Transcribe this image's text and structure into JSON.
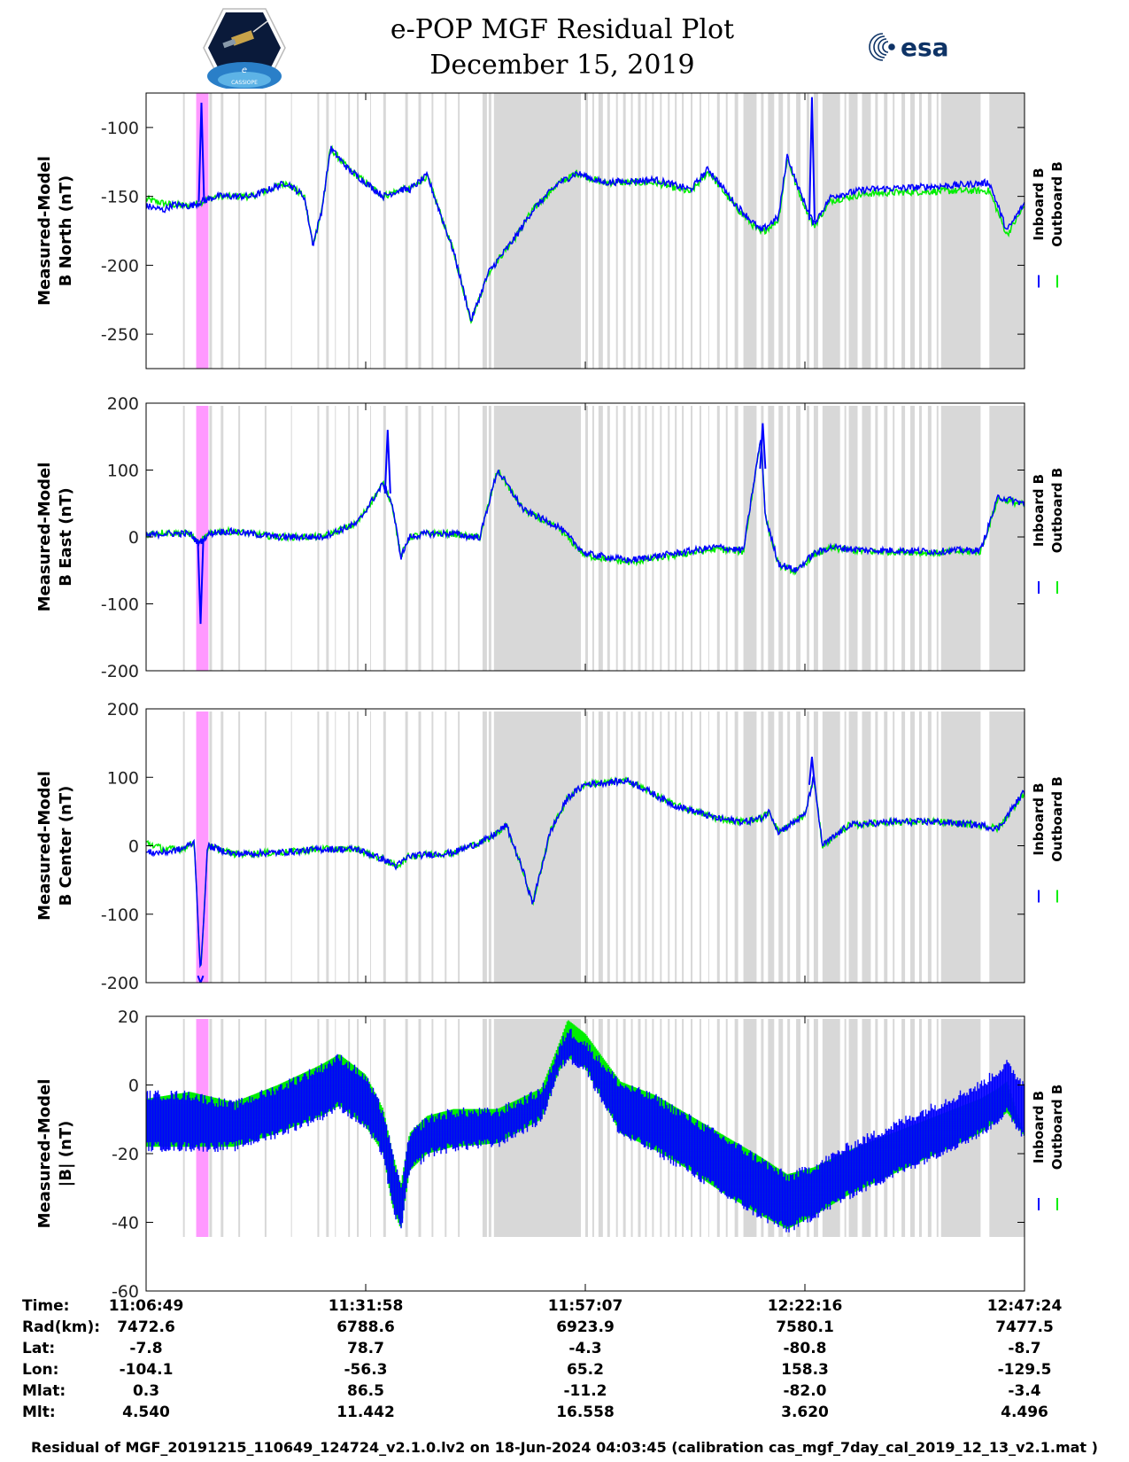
{
  "title": {
    "line1": "e-POP MGF Residual Plot",
    "line2": "December 15, 2019"
  },
  "logos": {
    "mission": "CASSIOPE",
    "agency": "esa"
  },
  "colors": {
    "inboard": "#0000ff",
    "outboard": "#00ee00",
    "gap": "#d8d8d8",
    "event": "#ff99ff"
  },
  "legend": {
    "inboard": "Inboard B",
    "outboard": "Outboard B"
  },
  "chart_data": [
    {
      "type": "line",
      "ylabel_line1": "Measured-Model",
      "ylabel_line2": "B North (nT)",
      "ylim": [
        -275,
        -75
      ],
      "yticks": [
        -100,
        -150,
        -200,
        -250
      ],
      "ytick_labels": [
        "-100",
        "-150",
        "-200",
        "-250"
      ],
      "x_minutes": [
        0,
        2,
        3,
        5,
        8,
        12,
        16,
        18,
        19,
        20,
        21,
        23,
        26,
        27,
        29,
        30,
        32,
        35,
        37,
        39,
        42,
        44,
        47,
        48,
        49,
        52,
        58,
        62,
        64,
        67,
        70,
        72,
        73,
        74,
        76,
        77,
        78,
        82,
        86,
        92,
        96,
        98,
        100
      ],
      "series": [
        {
          "name": "Inboard B",
          "values": [
            -157,
            -160,
            -156,
            -157,
            -150,
            -150,
            -140,
            -150,
            -185,
            -160,
            -115,
            -130,
            -145,
            -150,
            -145,
            -145,
            -135,
            -190,
            -240,
            -205,
            -180,
            -160,
            -140,
            -137,
            -133,
            -140,
            -138,
            -145,
            -130,
            -155,
            -175,
            -165,
            -120,
            -140,
            -170,
            -160,
            -150,
            -145,
            -144,
            -142,
            -140,
            -175,
            -155
          ]
        },
        {
          "name": "Outboard B",
          "values": [
            -152,
            -155,
            -156,
            -157,
            -150,
            -150,
            -140,
            -150,
            -185,
            -160,
            -115,
            -130,
            -145,
            -150,
            -145,
            -145,
            -135,
            -190,
            -240,
            -205,
            -180,
            -160,
            -140,
            -137,
            -133,
            -140,
            -140,
            -147,
            -132,
            -157,
            -177,
            -167,
            -122,
            -142,
            -172,
            -162,
            -153,
            -148,
            -147,
            -146,
            -146,
            -178,
            -157
          ]
        }
      ],
      "spikes": [
        {
          "x": 6.3,
          "value": -82
        },
        {
          "x": 75.8,
          "value": -78
        }
      ]
    },
    {
      "type": "line",
      "ylabel_line1": "Measured-Model",
      "ylabel_line2": "B East (nT)",
      "ylim": [
        -200,
        200
      ],
      "yticks": [
        200,
        100,
        0,
        -100,
        -200
      ],
      "ytick_labels": [
        "200",
        "100",
        "0",
        "-100",
        "-200"
      ],
      "x_minutes": [
        0,
        2,
        5,
        6,
        7,
        8,
        10,
        15,
        20,
        24,
        27,
        28,
        29,
        30,
        32,
        35,
        37,
        38,
        40,
        43,
        47,
        50,
        55,
        60,
        65,
        68,
        70,
        70.5,
        72,
        74,
        76,
        78,
        82,
        86,
        90,
        92,
        95,
        97,
        100
      ],
      "series": [
        {
          "name": "Inboard B",
          "values": [
            2,
            5,
            5,
            -10,
            3,
            8,
            8,
            0,
            0,
            20,
            80,
            50,
            -30,
            0,
            5,
            5,
            0,
            0,
            100,
            40,
            15,
            -25,
            -35,
            -25,
            -15,
            -20,
            150,
            30,
            -40,
            -50,
            -25,
            -15,
            -20,
            -20,
            -22,
            -20,
            -20,
            60,
            50
          ]
        },
        {
          "name": "Outboard B",
          "values": [
            4,
            7,
            5,
            -10,
            3,
            8,
            8,
            0,
            0,
            20,
            80,
            50,
            -30,
            0,
            5,
            5,
            0,
            0,
            100,
            40,
            12,
            -28,
            -38,
            -28,
            -18,
            -22,
            150,
            30,
            -42,
            -52,
            -27,
            -17,
            -22,
            -22,
            -24,
            -22,
            -22,
            58,
            48
          ]
        }
      ],
      "spikes": [
        {
          "x": 6.2,
          "value": -130
        },
        {
          "x": 27.5,
          "value": 160
        },
        {
          "x": 70.2,
          "value": 170
        }
      ]
    },
    {
      "type": "line",
      "ylabel_line1": "Measured-Model",
      "ylabel_line2": "B Center (nT)",
      "ylim": [
        -200,
        200
      ],
      "yticks": [
        200,
        100,
        0,
        -100,
        -200
      ],
      "ytick_labels": [
        "200",
        "100",
        "0",
        "-100",
        "-200"
      ],
      "x_minutes": [
        0,
        2,
        4,
        5.5,
        6.2,
        7,
        10,
        15,
        20,
        24,
        27,
        28.5,
        30,
        35,
        39,
        41,
        43,
        44,
        46,
        48,
        50,
        55,
        60,
        65,
        68,
        70,
        71,
        72,
        75,
        76,
        77,
        80,
        85,
        90,
        95,
        97,
        100
      ],
      "series": [
        {
          "name": "Inboard B",
          "values": [
            -10,
            -10,
            -5,
            5,
            -190,
            0,
            -12,
            -10,
            -5,
            -5,
            -20,
            -30,
            -15,
            -10,
            10,
            30,
            -40,
            -85,
            20,
            70,
            90,
            95,
            60,
            40,
            35,
            40,
            50,
            20,
            45,
            100,
            0,
            30,
            35,
            35,
            30,
            25,
            80
          ]
        },
        {
          "name": "Outboard B",
          "values": [
            5,
            -5,
            -5,
            5,
            -190,
            0,
            -12,
            -10,
            -5,
            -5,
            -20,
            -30,
            -15,
            -10,
            10,
            30,
            -40,
            -85,
            20,
            70,
            90,
            95,
            60,
            40,
            35,
            40,
            50,
            20,
            45,
            100,
            0,
            30,
            35,
            35,
            30,
            25,
            78
          ]
        }
      ],
      "spikes": [
        {
          "x": 6.2,
          "value": -200
        },
        {
          "x": 75.8,
          "value": 130
        }
      ]
    },
    {
      "type": "area",
      "ylabel_line1": "Measured-Model",
      "ylabel_line2": "|B| (nT)",
      "ylim": [
        -60,
        20
      ],
      "yticks": [
        20,
        0,
        -20,
        -40,
        -60
      ],
      "ytick_labels": [
        "20",
        "0",
        "-20",
        "-40",
        "-60"
      ],
      "x_minutes": [
        0,
        5,
        10,
        15,
        20,
        22,
        25,
        27,
        28,
        29,
        30,
        32,
        35,
        40,
        45,
        47,
        48,
        50,
        54,
        58,
        62,
        66,
        70,
        73,
        76,
        80,
        85,
        90,
        95,
        97,
        98,
        100
      ],
      "series": [
        {
          "name": "Inboard B upper",
          "values": [
            -3,
            -3,
            -6,
            -1,
            5,
            8,
            2,
            -8,
            -20,
            -30,
            -15,
            -10,
            -8,
            -8,
            -2,
            10,
            16,
            12,
            0,
            -4,
            -10,
            -16,
            -22,
            -27,
            -24,
            -18,
            -12,
            -6,
            0,
            4,
            6,
            0
          ]
        },
        {
          "name": "Inboard B lower",
          "values": [
            -18,
            -18,
            -18,
            -14,
            -9,
            -6,
            -12,
            -20,
            -35,
            -42,
            -25,
            -20,
            -18,
            -17,
            -10,
            4,
            8,
            5,
            -14,
            -19,
            -25,
            -32,
            -38,
            -42,
            -38,
            -32,
            -26,
            -20,
            -14,
            -10,
            -8,
            -15
          ]
        },
        {
          "name": "Outboard B",
          "values": [
            -5,
            -3,
            -6,
            -1,
            5,
            8,
            2,
            -8,
            -20,
            -30,
            -15,
            -10,
            -8,
            -8,
            -2,
            11,
            18,
            14,
            0,
            -4,
            -10,
            -16,
            -22,
            -27,
            -25,
            -20,
            -15,
            -10,
            -5,
            -2,
            0,
            -16
          ]
        }
      ]
    }
  ],
  "x_axis": {
    "tick_minutes": [
      0,
      25,
      50,
      75,
      100
    ],
    "table": {
      "labels": [
        "Time:",
        "Rad(km):",
        "Lat:",
        "Lon:",
        "Mlat:",
        "Mlt:"
      ],
      "columns": [
        [
          "11:06:49",
          "7472.6",
          "-7.8",
          "-104.1",
          "0.3",
          "4.540"
        ],
        [
          "11:31:58",
          "6788.6",
          "78.7",
          "-56.3",
          "86.5",
          "11.442"
        ],
        [
          "11:57:07",
          "6923.9",
          "-4.3",
          "65.2",
          "-11.2",
          "16.558"
        ],
        [
          "12:22:16",
          "7580.1",
          "-80.8",
          "158.3",
          "-82.0",
          "3.620"
        ],
        [
          "12:47:24",
          "7477.5",
          "-8.7",
          "-129.5",
          "-3.4",
          "4.496"
        ]
      ]
    }
  },
  "gap_intervals_minutes": [
    [
      4.2,
      4.4
    ],
    [
      7.2,
      7.5
    ],
    [
      8.5,
      8.8
    ],
    [
      10.5,
      10.7
    ],
    [
      13.5,
      13.7
    ],
    [
      16.5,
      16.6
    ],
    [
      19.5,
      19.7
    ],
    [
      20.5,
      20.8
    ],
    [
      21.5,
      21.6
    ],
    [
      23.0,
      23.2
    ],
    [
      24.0,
      24.2
    ],
    [
      25.5,
      25.6
    ],
    [
      27.0,
      27.3
    ],
    [
      29.5,
      29.8
    ],
    [
      31.0,
      31.3
    ],
    [
      32.5,
      32.7
    ],
    [
      34.0,
      34.2
    ],
    [
      35.5,
      35.7
    ],
    [
      38.3,
      38.8
    ],
    [
      39.0,
      39.3
    ],
    [
      39.6,
      49.5
    ],
    [
      50.0,
      50.3
    ],
    [
      50.8,
      51.0
    ],
    [
      51.5,
      52.0
    ],
    [
      52.5,
      52.8
    ],
    [
      53.5,
      53.7
    ],
    [
      54.3,
      54.6
    ],
    [
      55.2,
      55.4
    ],
    [
      56.0,
      56.3
    ],
    [
      56.8,
      57.0
    ],
    [
      57.6,
      57.8
    ],
    [
      58.5,
      58.7
    ],
    [
      59.4,
      59.6
    ],
    [
      60.2,
      60.4
    ],
    [
      61.0,
      61.2
    ],
    [
      62.0,
      62.2
    ],
    [
      63.0,
      63.2
    ],
    [
      64.0,
      64.1
    ],
    [
      65.0,
      65.3
    ],
    [
      66.0,
      66.2
    ],
    [
      67.0,
      67.4
    ],
    [
      68.0,
      69.5
    ],
    [
      70.0,
      70.3
    ],
    [
      70.8,
      71.5
    ],
    [
      72.0,
      72.5
    ],
    [
      73.0,
      73.3
    ],
    [
      74.0,
      74.5
    ],
    [
      75.2,
      75.5
    ],
    [
      76.0,
      76.5
    ],
    [
      77.0,
      79.0
    ],
    [
      79.5,
      79.7
    ],
    [
      80.0,
      81.0
    ],
    [
      81.5,
      82.5
    ],
    [
      83.0,
      83.3
    ],
    [
      84.0,
      84.4
    ],
    [
      85.0,
      85.2
    ],
    [
      86.0,
      86.4
    ],
    [
      87.0,
      87.5
    ],
    [
      88.0,
      88.3
    ],
    [
      89.0,
      89.4
    ],
    [
      90.0,
      90.2
    ],
    [
      90.5,
      95.0
    ],
    [
      96.0,
      100.0
    ]
  ],
  "event_interval_minutes": [
    5.7,
    7.1
  ],
  "footer": "Residual of MGF_20191215_110649_124724_v2.1.0.lv2 on 18-Jun-2024 04:03:45 (calibration cas_mgf_7day_cal_2019_12_13_v2.1.mat )"
}
